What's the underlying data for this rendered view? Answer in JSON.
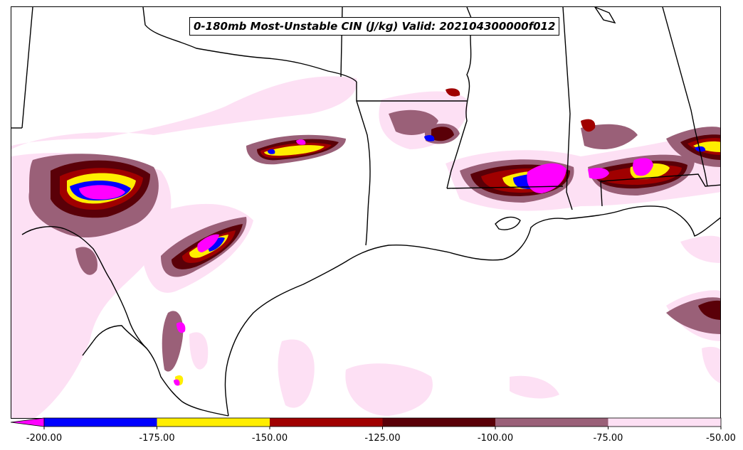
{
  "title": "0-180mb Most-Unstable CIN (J/kg) Valid: 202104300000f012",
  "colorbar": {
    "ticks": [
      "-200.00",
      "-175.00",
      "-150.00",
      "-125.00",
      "-100.00",
      "-75.00",
      "-50.00"
    ],
    "levels": [
      -200,
      -175,
      -150,
      -125,
      -100,
      -75,
      -50
    ],
    "colors": [
      "#0000ff",
      "#ffee00",
      "#a00000",
      "#5a0008",
      "#9a6078",
      "#fde0f4"
    ],
    "extend_color": "#ff00ff"
  },
  "map_colors": {
    "pink": "#fde0f4",
    "mauve": "#9a6078",
    "darkred": "#5a0008",
    "red": "#a00000",
    "yellow": "#ffee00",
    "blue": "#0000ff",
    "magenta": "#ff00ff",
    "border": "#000000"
  }
}
